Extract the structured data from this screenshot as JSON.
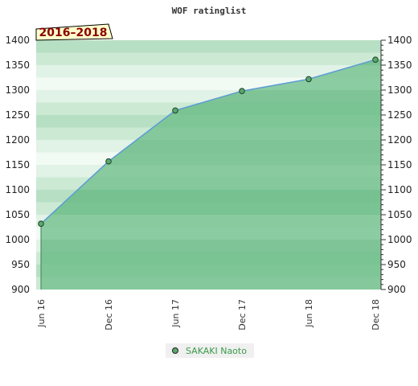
{
  "chart_data": {
    "type": "area",
    "title": "WOF ratinglist",
    "period_label": "2016–2018",
    "x_ticks": [
      "Jun 16",
      "Dec 16",
      "Jun 17",
      "Dec 17",
      "Jun 18",
      "Dec 18"
    ],
    "ylim": [
      900,
      1400
    ],
    "y_ticks": [
      900,
      950,
      1000,
      1050,
      1100,
      1150,
      1200,
      1250,
      1300,
      1350,
      1400
    ],
    "grid": true,
    "legend_position": "bottom-center",
    "series": [
      {
        "name": "SAKAKI Naoto",
        "x": [
          "Jun 16",
          "Dec 16",
          "Jun 17",
          "Dec 17",
          "Jun 18",
          "Dec 18"
        ],
        "values": [
          1032,
          1157,
          1259,
          1298,
          1322,
          1361
        ],
        "line_color": "#5b9bd5",
        "fill_color": "#6fbf8a",
        "marker_color": "#5aa86c"
      }
    ]
  }
}
